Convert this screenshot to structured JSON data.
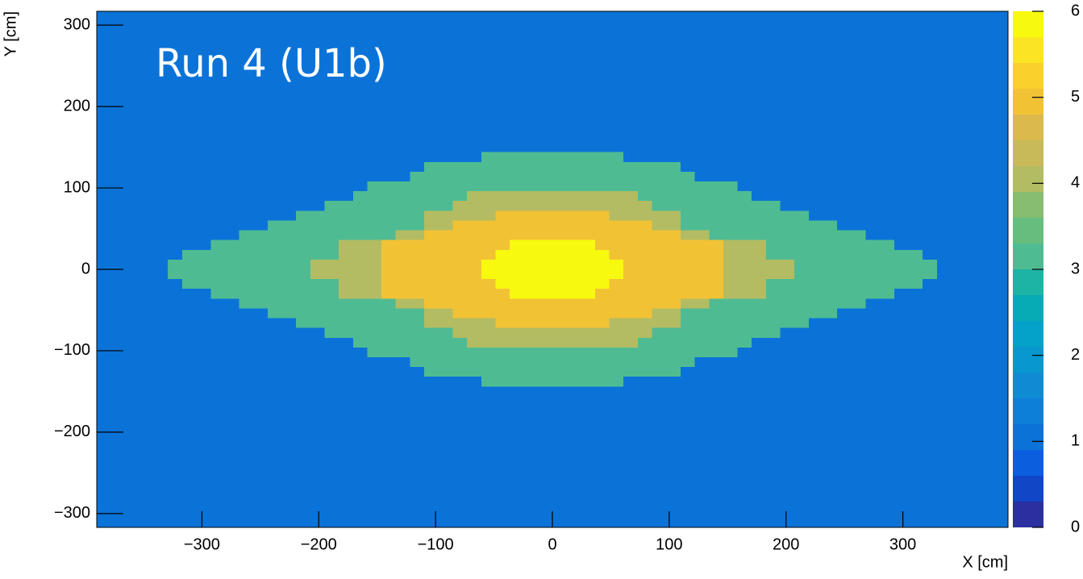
{
  "chart_data": {
    "type": "heatmap",
    "title": "Run 4 (U1b)",
    "x_label": "X [cm]",
    "y_label": "Y [cm]",
    "xlim": [
      -390,
      390
    ],
    "ylim": [
      -317,
      317
    ],
    "xticks": [
      {
        "value": -300,
        "label": "−300"
      },
      {
        "value": -200,
        "label": "−200"
      },
      {
        "value": -100,
        "label": "−100"
      },
      0,
      100,
      200,
      300
    ],
    "yticks": [
      {
        "value": -300,
        "label": "−300"
      },
      {
        "value": -200,
        "label": "−200"
      },
      {
        "value": -100,
        "label": "−100"
      },
      0,
      100,
      200,
      300
    ],
    "zlim": [
      0,
      6
    ],
    "zticks": [
      0,
      1,
      2,
      3,
      4,
      5,
      6
    ],
    "palette": [
      "#2b2fa0",
      "#1146c7",
      "#0b5ede",
      "#0b73d8",
      "#0e7fd8",
      "#0f8bd4",
      "#0897cf",
      "#04a2c8",
      "#07abb6",
      "#1db3a5",
      "#4fbb93",
      "#66bd7e",
      "#86bd70",
      "#b3bc62",
      "#c8ba58",
      "#dbb94c",
      "#f2c235",
      "#fad02d",
      "#fbe424",
      "#f7f90e"
    ],
    "regions": [
      {
        "z": 1.05,
        "rects": [
          [
            -390,
            390,
            -317,
            317
          ]
        ]
      },
      {
        "z": 3.15,
        "rects": [
          [
            -60.9,
            60.9,
            132,
            144
          ],
          [
            -109.7,
            109.7,
            120,
            132
          ],
          [
            -121.9,
            121.9,
            108,
            120
          ],
          [
            -158.4,
            158.4,
            96,
            108
          ],
          [
            -170.6,
            170.6,
            84,
            96
          ],
          [
            -195,
            195,
            72,
            84
          ],
          [
            -219.4,
            219.4,
            60,
            72
          ],
          [
            -243.8,
            243.8,
            48,
            60
          ],
          [
            -268.1,
            268.1,
            36,
            48
          ],
          [
            -292.5,
            292.5,
            24,
            36
          ],
          [
            -316.9,
            316.9,
            12,
            24
          ],
          [
            -329.1,
            329.1,
            -12,
            12
          ],
          [
            -316.9,
            316.9,
            -24,
            -12
          ],
          [
            -292.5,
            292.5,
            -36,
            -24
          ],
          [
            -268.1,
            268.1,
            -48,
            -36
          ],
          [
            -243.8,
            243.8,
            -60,
            -48
          ],
          [
            -219.4,
            219.4,
            -72,
            -60
          ],
          [
            -195,
            195,
            -84,
            -72
          ],
          [
            -170.6,
            170.6,
            -96,
            -84
          ],
          [
            -158.4,
            158.4,
            -108,
            -96
          ],
          [
            -121.9,
            121.9,
            -120,
            -108
          ],
          [
            -109.7,
            109.7,
            -132,
            -120
          ],
          [
            -60.9,
            60.9,
            -144,
            -132
          ]
        ]
      },
      {
        "z": 4.05,
        "rects": [
          [
            -73.1,
            73.1,
            84,
            96
          ],
          [
            -85.3,
            85.3,
            72,
            84
          ],
          [
            -109.7,
            109.7,
            48,
            72
          ],
          [
            -134.1,
            134.1,
            36,
            48
          ],
          [
            -182.8,
            182.8,
            12,
            36
          ],
          [
            -207.2,
            207.2,
            -12,
            12
          ],
          [
            -182.8,
            182.8,
            -36,
            -12
          ],
          [
            -134.1,
            134.1,
            -48,
            -36
          ],
          [
            -109.7,
            109.7,
            -72,
            -48
          ],
          [
            -85.3,
            85.3,
            -84,
            -72
          ],
          [
            -73.1,
            73.1,
            -96,
            -84
          ]
        ]
      },
      {
        "z": 4.95,
        "rects": [
          [
            -48.8,
            48.8,
            60,
            72
          ],
          [
            -85.3,
            85.3,
            48,
            60
          ],
          [
            -109.7,
            109.7,
            36,
            48
          ],
          [
            -146.3,
            146.3,
            -36,
            36
          ],
          [
            -109.7,
            109.7,
            -48,
            -36
          ],
          [
            -85.3,
            85.3,
            -60,
            -48
          ],
          [
            -48.8,
            48.8,
            -72,
            -60
          ]
        ]
      },
      {
        "z": 5.85,
        "rects": [
          [
            -36.6,
            36.6,
            24,
            36
          ],
          [
            -48.8,
            48.8,
            12,
            24
          ],
          [
            -60.9,
            60.9,
            -12,
            12
          ],
          [
            -48.8,
            48.8,
            -24,
            -12
          ],
          [
            -36.6,
            36.6,
            -36,
            -24
          ]
        ]
      },
      {
        "z": 6.2,
        "rects": [
          [
            -24.4,
            24.4,
            -24,
            24
          ]
        ]
      }
    ]
  }
}
